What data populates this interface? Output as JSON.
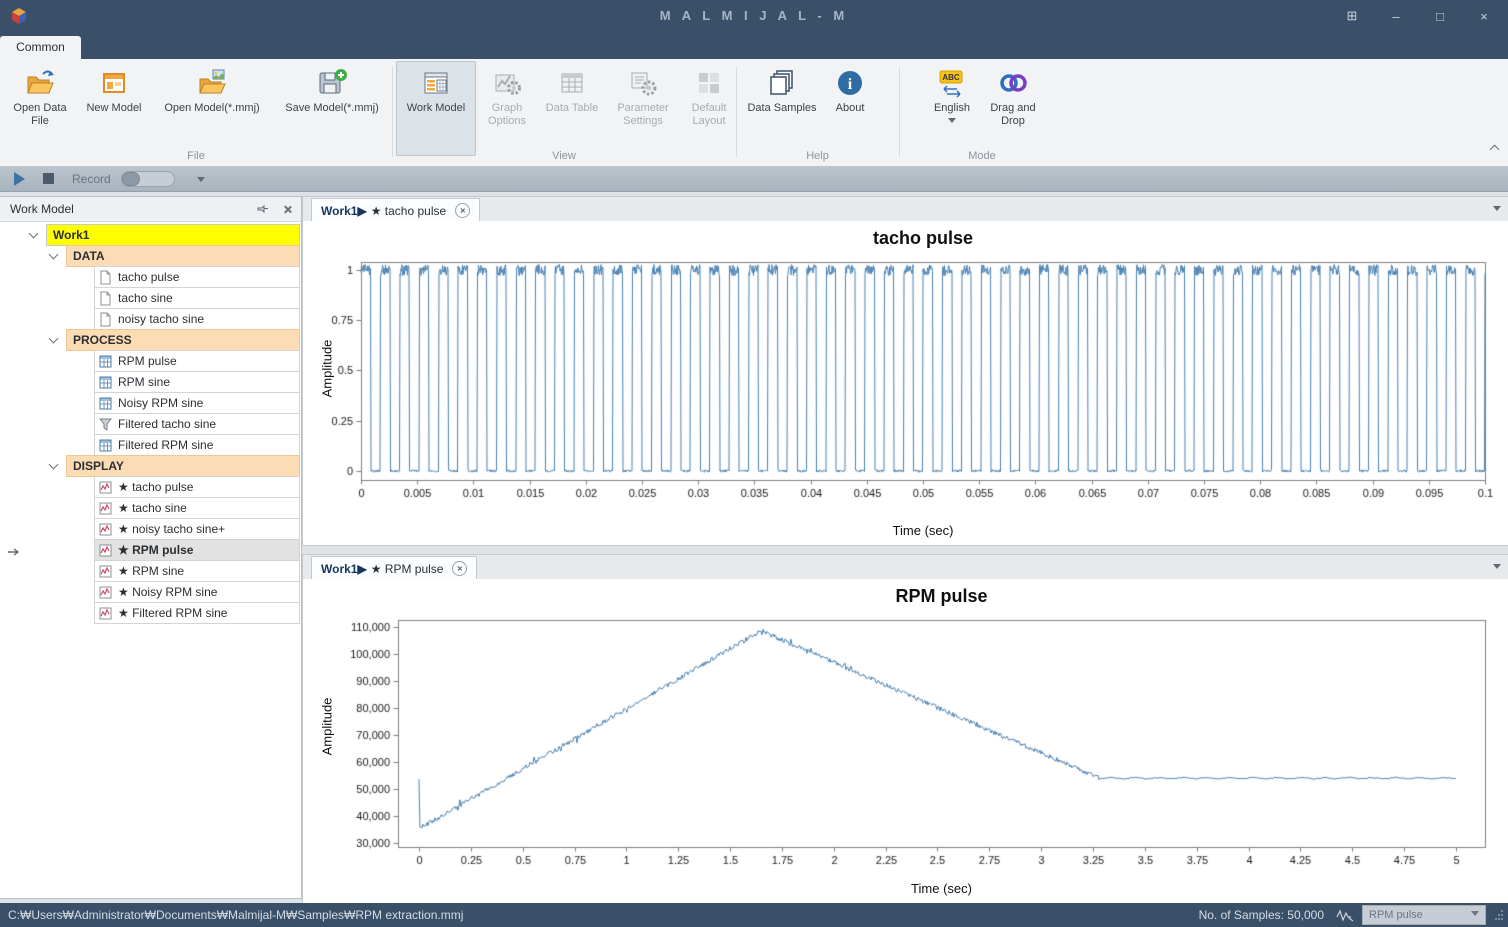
{
  "window": {
    "title": "M A L M I J A L - M",
    "controls": {
      "tray": "⊞",
      "minimize": "–",
      "maximize": "□",
      "close": "×"
    }
  },
  "ribbon": {
    "active_tab": "Common",
    "icon_glyphs": {
      "english": "ABC",
      "about": "i"
    },
    "groups": [
      {
        "label": "File",
        "buttons": [
          {
            "label": "Open Data File",
            "icon": "open-data-file",
            "disabled": false
          },
          {
            "label": "New Model",
            "icon": "new-model",
            "disabled": false
          },
          {
            "label": "Open Model(*.mmj)",
            "icon": "open-model",
            "disabled": false
          },
          {
            "label": "Save Model(*.mmj)",
            "icon": "save-model",
            "disabled": false
          }
        ]
      },
      {
        "label": "View",
        "buttons": [
          {
            "label": "Work Model",
            "icon": "work-model",
            "disabled": false,
            "selected": true
          },
          {
            "label": "Graph Options",
            "icon": "graph-options",
            "disabled": true
          },
          {
            "label": "Data Table",
            "icon": "data-table",
            "disabled": true
          },
          {
            "label": "Parameter Settings",
            "icon": "parameter-settings",
            "disabled": true
          },
          {
            "label": "Default Layout",
            "icon": "default-layout",
            "disabled": true
          }
        ]
      },
      {
        "label": "Help",
        "buttons": [
          {
            "label": "Data Samples",
            "icon": "data-samples",
            "disabled": false
          },
          {
            "label": "About",
            "icon": "about",
            "disabled": false
          }
        ]
      },
      {
        "label": "Mode",
        "buttons": [
          {
            "label": "English",
            "icon": "english",
            "disabled": false,
            "has_dropdown": true
          },
          {
            "label": "Drag and Drop",
            "icon": "drag-and-drop",
            "disabled": false
          }
        ]
      }
    ]
  },
  "record_bar": {
    "label": "Record"
  },
  "work_model_panel": {
    "title": "Work Model",
    "tree": {
      "root": {
        "label": "Work1"
      },
      "groups": [
        {
          "label": "DATA",
          "items": [
            {
              "label": "tacho pulse",
              "icon": "document"
            },
            {
              "label": "tacho sine",
              "icon": "document"
            },
            {
              "label": "noisy tacho sine",
              "icon": "document"
            }
          ]
        },
        {
          "label": "PROCESS",
          "items": [
            {
              "label": "RPM pulse",
              "icon": "grid"
            },
            {
              "label": "RPM sine",
              "icon": "grid"
            },
            {
              "label": "Noisy RPM sine",
              "icon": "grid"
            },
            {
              "label": "Filtered tacho sine",
              "icon": "funnel"
            },
            {
              "label": "Filtered RPM sine",
              "icon": "grid"
            }
          ]
        },
        {
          "label": "DISPLAY",
          "items": [
            {
              "label": "★ tacho pulse",
              "icon": "chart"
            },
            {
              "label": "★ tacho sine",
              "icon": "chart"
            },
            {
              "label": "★ noisy tacho sine+",
              "icon": "chart"
            },
            {
              "label": "★ RPM pulse",
              "icon": "chart",
              "selected": true
            },
            {
              "label": "★ RPM sine",
              "icon": "chart"
            },
            {
              "label": "★ Noisy RPM sine",
              "icon": "chart"
            },
            {
              "label": "★ Filtered RPM sine",
              "icon": "chart"
            }
          ]
        }
      ]
    }
  },
  "documents": [
    {
      "tab_prefix": "Work1▶",
      "tab_title": "★ tacho pulse"
    },
    {
      "tab_prefix": "Work1▶",
      "tab_title": "★ RPM pulse"
    }
  ],
  "status_bar": {
    "file_path": "C:₩Users₩Administrator₩Documents₩Malmijal-M₩Samples₩RPM extraction.mmj",
    "samples_label": "No. of Samples: 50,000",
    "signal_selector_value": "RPM pulse"
  },
  "colors": {
    "titlebar": "#3a4f68",
    "line_color": "#4a82b2",
    "tree_group_bg": "#fcdcb4",
    "root_highlight": "#ffff00"
  },
  "chart_data": [
    {
      "id": "tacho_pulse",
      "type": "line",
      "title": "tacho pulse",
      "xlabel": "Time (sec)",
      "ylabel": "Amplitude",
      "xlim": [
        0,
        0.1
      ],
      "ylim": [
        -0.045,
        1.04
      ],
      "xticks": [
        0,
        0.005,
        0.01,
        0.015,
        0.02,
        0.025,
        0.03,
        0.035,
        0.04,
        0.045,
        0.05,
        0.055,
        0.06,
        0.065,
        0.07,
        0.075,
        0.08,
        0.085,
        0.09,
        0.095,
        0.1
      ],
      "yticks": [
        0,
        0.25,
        0.5,
        0.75,
        1
      ],
      "grid": false,
      "legend": false,
      "line_color": "#4a82b2",
      "waveform": {
        "kind": "square",
        "frequency_hz": 580,
        "low": 0,
        "high": 1,
        "duty_cycle": 0.5,
        "description": "tachometer square pulse train toggling between 0 and 1, roughly 58 pulses across the 0 to 0.1 s window, noisy tops"
      }
    },
    {
      "id": "rpm_pulse",
      "type": "line",
      "title": "RPM pulse",
      "xlabel": "Time (sec)",
      "ylabel": "Amplitude",
      "xlim": [
        -0.101,
        5.14
      ],
      "ylim": [
        28500,
        112600
      ],
      "xticks": [
        0,
        0.25,
        0.5,
        0.75,
        1,
        1.25,
        1.5,
        1.75,
        2,
        2.25,
        2.5,
        2.75,
        3,
        3.25,
        3.5,
        3.75,
        4,
        4.25,
        4.5,
        4.75,
        5
      ],
      "yticks": [
        30000,
        40000,
        50000,
        60000,
        70000,
        80000,
        90000,
        100000,
        110000
      ],
      "grid": false,
      "legend": false,
      "line_color": "#4a82b2",
      "waveform": {
        "kind": "keypoints",
        "points": [
          [
            0,
            35200
          ],
          [
            1.65,
            108600
          ],
          [
            3.28,
            54000
          ],
          [
            5,
            54000
          ]
        ],
        "noise": 850,
        "description": "noisy RPM estimate ramping from ~35,000 at t=0 up to ~108,600 at t≈1.65 s, descending to ~54,000 at t≈3.3 s, then constant ~54,000 until t=5 s"
      }
    }
  ]
}
